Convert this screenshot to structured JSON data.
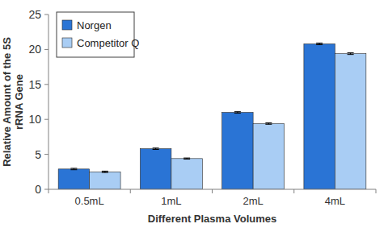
{
  "chart_data": {
    "type": "bar",
    "categories": [
      "0.5mL",
      "1mL",
      "2mL",
      "4mL"
    ],
    "series": [
      {
        "name": "Norgen",
        "color": "#2a74d5",
        "values": [
          2.9,
          5.8,
          11.0,
          20.8
        ],
        "errors": [
          0.1,
          0.1,
          0.1,
          0.12
        ]
      },
      {
        "name": "Competitor Q",
        "color": "#a9cdf4",
        "values": [
          2.5,
          4.4,
          9.4,
          19.4
        ],
        "errors": [
          0.1,
          0.08,
          0.1,
          0.12
        ]
      }
    ],
    "x_label": "Different Plasma Volumes",
    "y_label": "Relative Amount of the 5S rRNA Gene",
    "ylim": [
      0,
      25
    ],
    "yticks": [
      0,
      5,
      10,
      15,
      20,
      25
    ],
    "grid": false,
    "legend": "top-left"
  }
}
